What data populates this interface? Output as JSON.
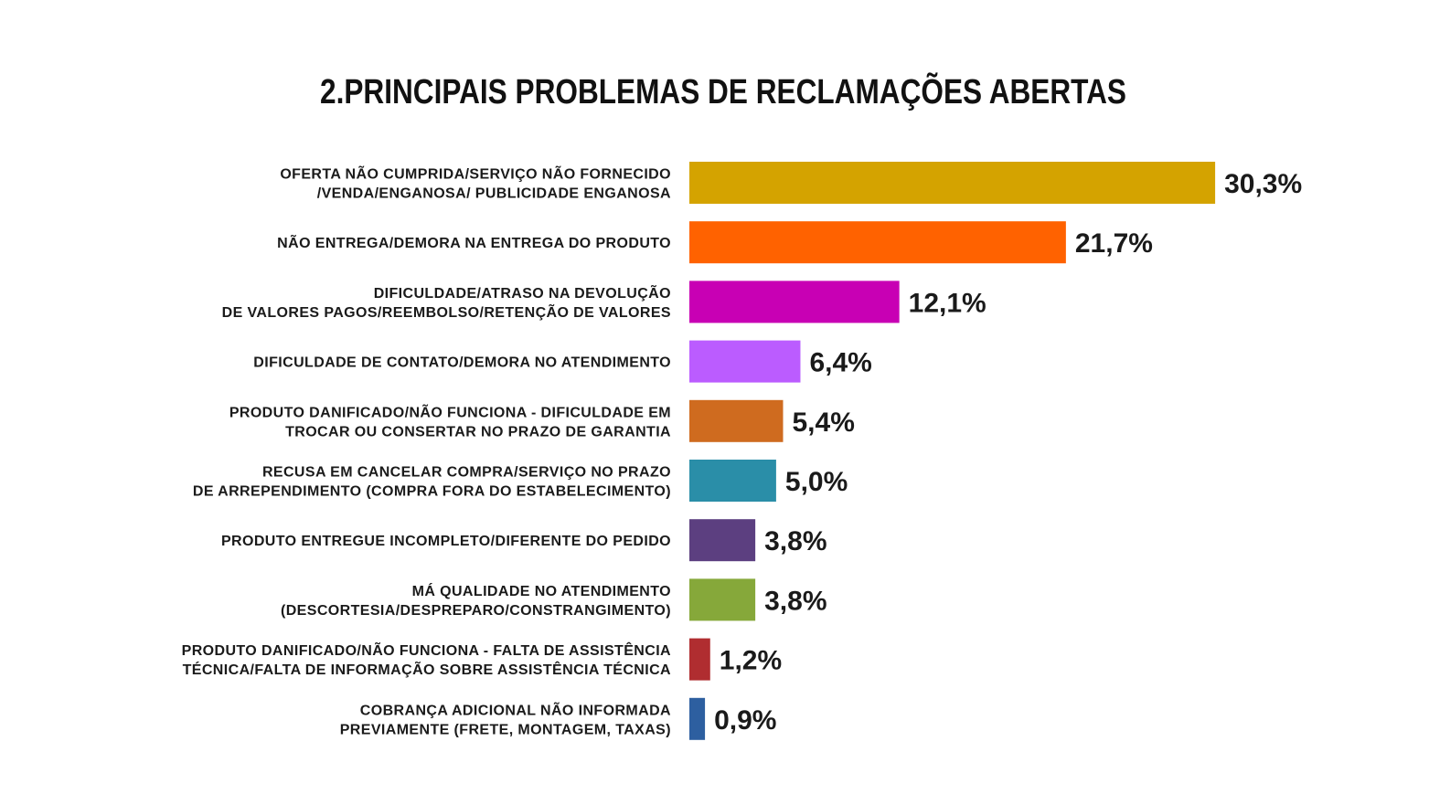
{
  "chart_data": {
    "type": "bar",
    "orientation": "horizontal",
    "title": "2.PRINCIPAIS PROBLEMAS DE RECLAMAÇÕES ABERTAS",
    "categories": [
      [
        "OFERTA NÃO CUMPRIDA/SERVIÇO NÃO FORNECIDO",
        "/VENDA/ENGANOSA/ PUBLICIDADE ENGANOSA"
      ],
      [
        "NÃO ENTREGA/DEMORA NA ENTREGA DO PRODUTO"
      ],
      [
        "DIFICULDADE/ATRASO NA DEVOLUÇÃO",
        "DE VALORES PAGOS/REEMBOLSO/RETENÇÃO DE VALORES"
      ],
      [
        "DIFICULDADE DE CONTATO/DEMORA NO ATENDIMENTO"
      ],
      [
        "PRODUTO DANIFICADO/NÃO FUNCIONA - DIFICULDADE EM",
        "TROCAR OU CONSERTAR NO PRAZO DE GARANTIA"
      ],
      [
        "RECUSA EM CANCELAR COMPRA/SERVIÇO NO PRAZO",
        "DE ARREPENDIMENTO (COMPRA FORA DO ESTABELECIMENTO)"
      ],
      [
        "PRODUTO ENTREGUE INCOMPLETO/DIFERENTE DO PEDIDO"
      ],
      [
        "MÁ QUALIDADE NO ATENDIMENTO",
        "(DESCORTESIA/DESPREPARO/CONSTRANGIMENTO)"
      ],
      [
        "PRODUTO DANIFICADO/NÃO FUNCIONA - FALTA DE ASSISTÊNCIA",
        "TÉCNICA/FALTA DE INFORMAÇÃO SOBRE ASSISTÊNCIA TÉCNICA"
      ],
      [
        "COBRANÇA ADICIONAL NÃO INFORMADA",
        "PREVIAMENTE (FRETE, MONTAGEM, TAXAS)"
      ]
    ],
    "values": [
      30.3,
      21.7,
      12.1,
      6.4,
      5.4,
      5.0,
      3.8,
      3.8,
      1.2,
      0.9
    ],
    "value_labels": [
      "30,3%",
      "21,7%",
      "12,1%",
      "6,4%",
      "5,4%",
      "5,0%",
      "3,8%",
      "3,8%",
      "1,2%",
      "0,9%"
    ],
    "colors": [
      "#d4a300",
      "#ff6200",
      "#c800b4",
      "#bb5cff",
      "#cf6b1f",
      "#2a8ea8",
      "#5c3f80",
      "#86a83a",
      "#b02d30",
      "#2d5fa0"
    ]
  }
}
